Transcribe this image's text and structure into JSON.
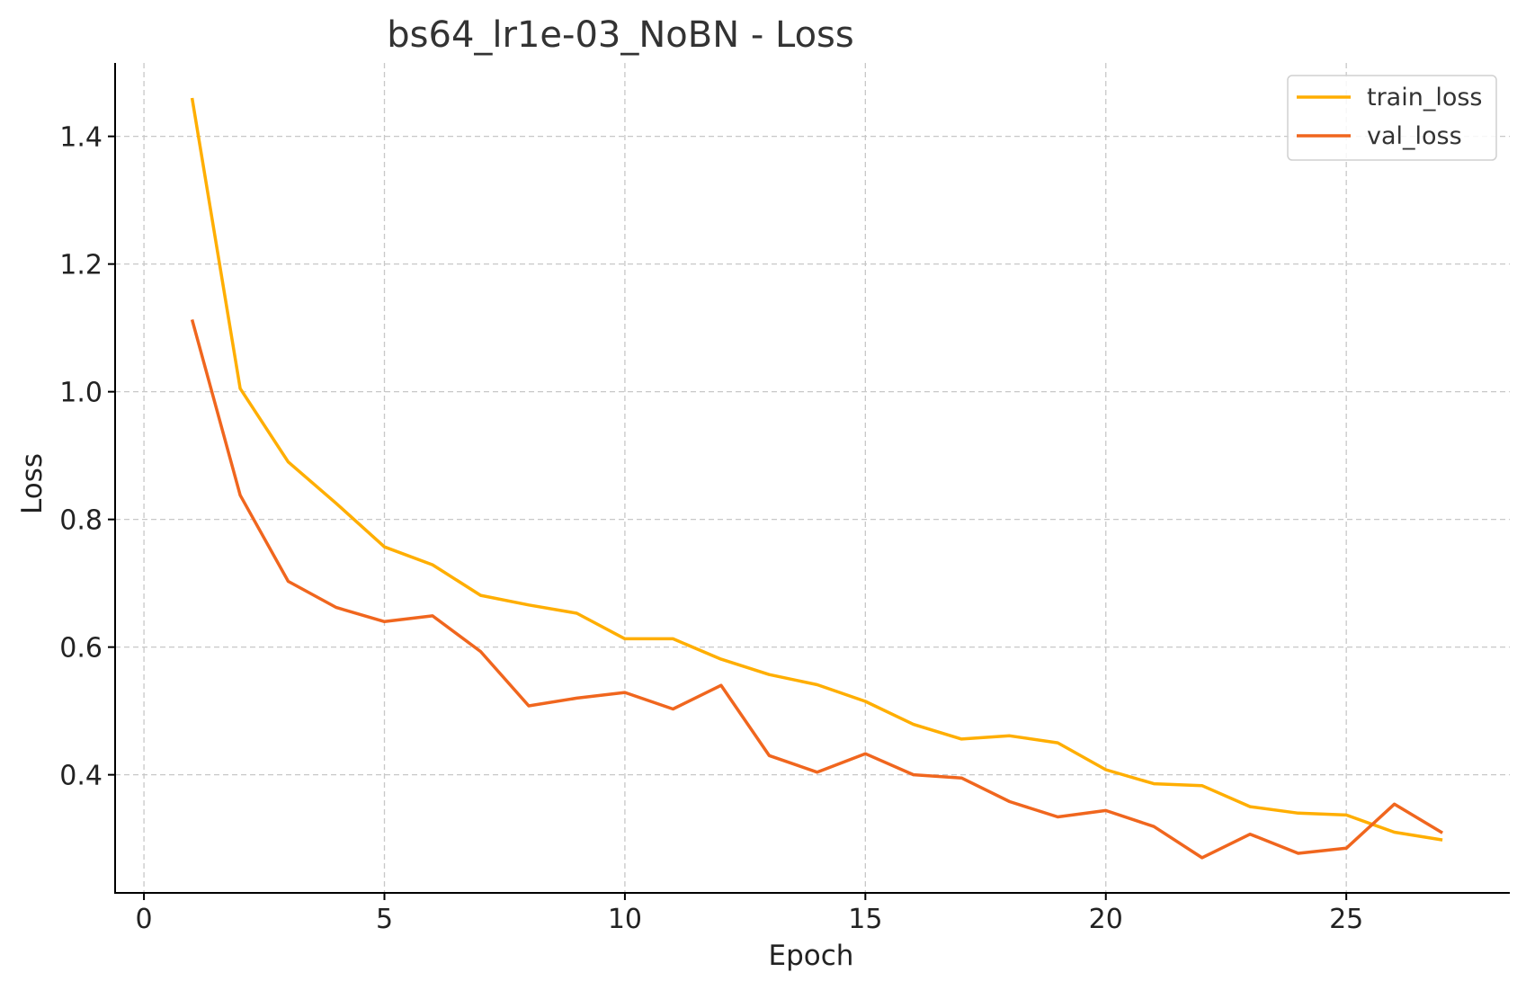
{
  "chart_data": {
    "type": "line",
    "title": "bs64_lr1e-03_NoBN - Loss",
    "xlabel": "Epoch",
    "ylabel": "Loss",
    "xlim": [
      -0.6,
      28.4
    ],
    "ylim": [
      0.215,
      1.515
    ],
    "xticks": [
      0,
      5,
      10,
      15,
      20,
      25
    ],
    "yticks": [
      0.4,
      0.6,
      0.8,
      1.0,
      1.2,
      1.4
    ],
    "xtick_labels": [
      "0",
      "5",
      "10",
      "15",
      "20",
      "25"
    ],
    "ytick_labels": [
      "0.4",
      "0.6",
      "0.8",
      "1.0",
      "1.2",
      "1.4"
    ],
    "grid": true,
    "legend_position": "top-right",
    "x": [
      1,
      2,
      3,
      4,
      5,
      6,
      7,
      8,
      9,
      10,
      11,
      12,
      13,
      14,
      15,
      16,
      17,
      18,
      19,
      20,
      21,
      22,
      23,
      24,
      25,
      26,
      27
    ],
    "series": [
      {
        "name": "train_loss",
        "color": "#FFAE00",
        "values": [
          1.46,
          1.005,
          0.89,
          0.825,
          0.757,
          0.729,
          0.681,
          0.666,
          0.653,
          0.613,
          0.613,
          0.581,
          0.557,
          0.541,
          0.515,
          0.479,
          0.456,
          0.461,
          0.45,
          0.408,
          0.386,
          0.383,
          0.35,
          0.34,
          0.337,
          0.31,
          0.298
        ]
      },
      {
        "name": "val_loss",
        "color": "#F0661E",
        "values": [
          1.113,
          0.838,
          0.703,
          0.662,
          0.64,
          0.649,
          0.593,
          0.508,
          0.52,
          0.529,
          0.503,
          0.54,
          0.43,
          0.404,
          0.433,
          0.4,
          0.395,
          0.358,
          0.334,
          0.344,
          0.319,
          0.27,
          0.307,
          0.277,
          0.285,
          0.354,
          0.309
        ]
      }
    ]
  }
}
